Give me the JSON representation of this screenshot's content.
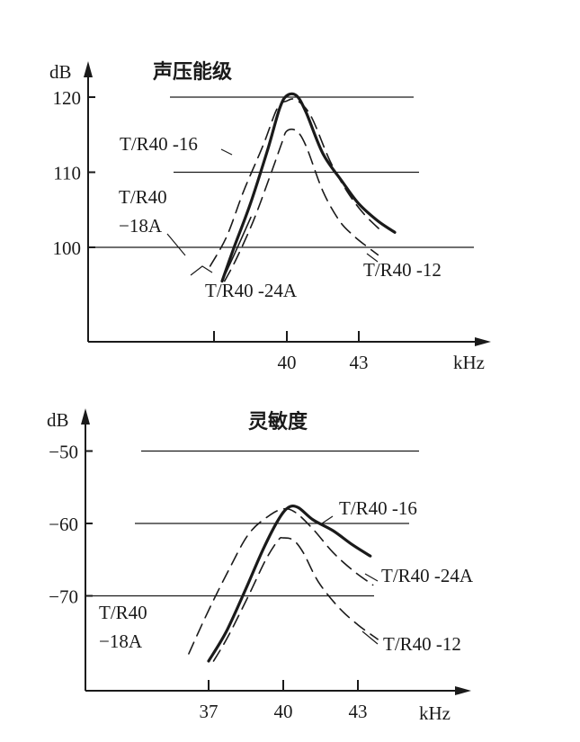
{
  "chart_data": [
    {
      "type": "line",
      "title": "声压能级",
      "ylabel": "dB",
      "xlabel": "kHz",
      "yticks": [
        "120",
        "110",
        "100"
      ],
      "xticks": [
        "40",
        "43"
      ],
      "grid": "horizontal lines",
      "series": [
        {
          "name": "T/R40 -16",
          "style": "solid-thick",
          "x": [
            37.3,
            37.8,
            38.5,
            39.2,
            39.7,
            40.0,
            40.4,
            40.8,
            41.5,
            42.3,
            43.0,
            43.8,
            44.5
          ],
          "y": [
            95.5,
            100,
            106,
            113,
            118.5,
            120.2,
            120.2,
            118,
            112.5,
            108.8,
            105.8,
            103.5,
            102
          ]
        },
        {
          "name": "T/R40 -12",
          "style": "dashed",
          "x": [
            37.4,
            37.9,
            38.6,
            39.3,
            39.8,
            40.0,
            40.4,
            40.8,
            41.5,
            42.2,
            42.8,
            43.3,
            43.8
          ],
          "y": [
            95.5,
            98.5,
            103.5,
            109.5,
            114,
            115.5,
            115.5,
            113.5,
            107.5,
            103.5,
            101.5,
            100.2,
            99
          ]
        },
        {
          "name": "T/R40 -24A",
          "style": "dashed",
          "x": [
            36.8,
            37.5,
            38.2,
            39.0,
            39.6,
            40.0,
            40.4,
            41.0,
            41.8,
            42.5,
            43.2,
            44.0
          ],
          "y": [
            97.5,
            101.5,
            107.5,
            113.5,
            118.5,
            119.5,
            119.6,
            117.5,
            111.5,
            107.5,
            104.5,
            102
          ]
        },
        {
          "name": "T/R40 -18A",
          "style": "solid-thin",
          "x": [
            37.3,
            37.8,
            38.5
          ],
          "y": [
            95.5,
            99,
            104
          ]
        }
      ]
    },
    {
      "type": "line",
      "title": "灵敏度",
      "ylabel": "dB",
      "xlabel": "kHz",
      "yticks": [
        "-50",
        "-60",
        "-70"
      ],
      "xticks": [
        "37",
        "40",
        "43"
      ],
      "grid": "horizontal lines",
      "series": [
        {
          "name": "T/R40 -16",
          "style": "solid-thick",
          "x": [
            37.0,
            37.7,
            38.5,
            39.2,
            39.8,
            40.2,
            40.6,
            41.2,
            42.0,
            42.8,
            43.5
          ],
          "y": [
            -79,
            -75,
            -69,
            -63.5,
            -59.5,
            -57.8,
            -57.8,
            -59.5,
            -61,
            -63,
            -64.5
          ]
        },
        {
          "name": "T/R40 -24A",
          "style": "dashed",
          "x": [
            36.2,
            37.0,
            37.8,
            38.6,
            39.4,
            40.0,
            40.5,
            41.2,
            42.0,
            42.8,
            43.6
          ],
          "y": [
            -78,
            -72,
            -66.5,
            -61.5,
            -59,
            -58,
            -58.5,
            -60.8,
            -64,
            -66.5,
            -68.5
          ]
        },
        {
          "name": "T/R40 -12",
          "style": "dashed",
          "x": [
            37.2,
            37.8,
            38.6,
            39.3,
            39.8,
            40.0,
            40.4,
            40.8,
            41.4,
            42.2,
            43.0,
            43.8
          ],
          "y": [
            -79,
            -75.5,
            -70,
            -65,
            -62.3,
            -62,
            -62.3,
            -64,
            -68,
            -71.5,
            -74,
            -76
          ]
        }
      ]
    }
  ]
}
